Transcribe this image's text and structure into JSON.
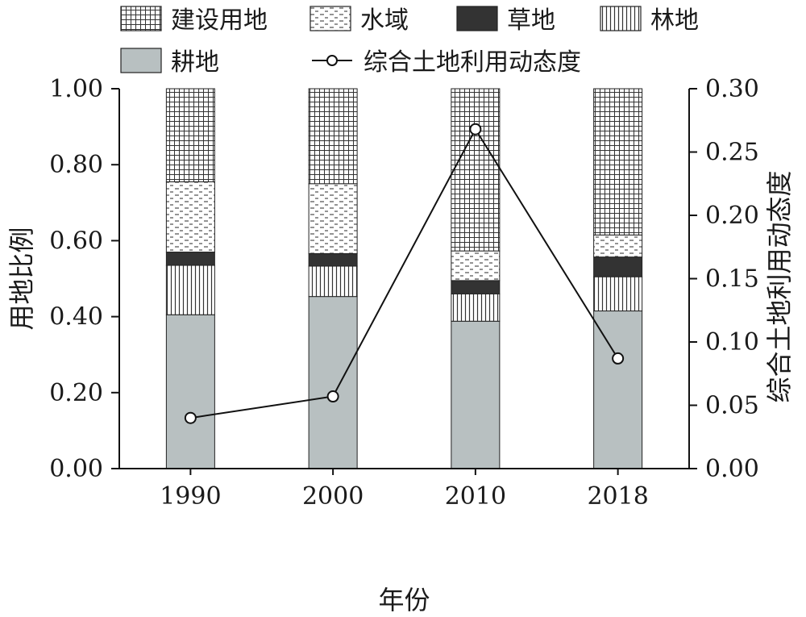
{
  "chart_data": {
    "type": "bar",
    "stacked": true,
    "categories": [
      "1990",
      "2000",
      "2010",
      "2018"
    ],
    "series": [
      {
        "name": "耕地",
        "values": [
          0.405,
          0.453,
          0.388,
          0.415
        ],
        "color": "#b8c0c1",
        "pattern": "solid"
      },
      {
        "name": "林地",
        "values": [
          0.13,
          0.08,
          0.072,
          0.09
        ],
        "color": "#ffffff",
        "pattern": "vertical-lines"
      },
      {
        "name": "草地",
        "values": [
          0.035,
          0.033,
          0.035,
          0.052
        ],
        "color": "#333333",
        "pattern": "solid"
      },
      {
        "name": "水域",
        "values": [
          0.185,
          0.184,
          0.078,
          0.058
        ],
        "color": "#ffffff",
        "pattern": "dashes"
      },
      {
        "name": "建设用地",
        "values": [
          0.245,
          0.25,
          0.427,
          0.385
        ],
        "color": "#ffffff",
        "pattern": "grid"
      }
    ],
    "line_series": {
      "name": "综合土地利用动态度",
      "values": [
        0.04,
        0.057,
        0.268,
        0.087
      ],
      "axis": "right"
    },
    "ylabel": "用地比例",
    "y2label": "综合土地利用动态度",
    "xlabel": "年份",
    "ylim": [
      0,
      1.0
    ],
    "y2lim": [
      0,
      0.3
    ],
    "yticks": [
      "0.00",
      "0.20",
      "0.40",
      "0.60",
      "0.80",
      "1.00"
    ],
    "y2ticks": [
      "0.00",
      "0.05",
      "0.10",
      "0.15",
      "0.20",
      "0.25",
      "0.30"
    ],
    "legend_order": [
      "建设用地",
      "水域",
      "草地",
      "林地",
      "耕地",
      "综合土地利用动态度"
    ],
    "legend_position": "top",
    "grid": false
  }
}
